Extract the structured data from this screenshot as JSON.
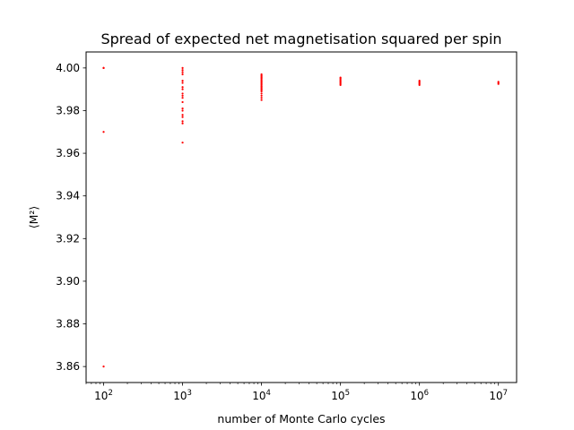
{
  "chart_data": {
    "type": "scatter",
    "title": "Spread of expected net magnetisation squared per spin",
    "xlabel": "number of Monte Carlo cycles",
    "ylabel": "⟨M²⟩",
    "xscale": "log",
    "xlim": [
      60,
      17000000
    ],
    "ylim": [
      3.8525,
      4.0075
    ],
    "x_ticks": [
      {
        "value": 100,
        "base": "10",
        "exp": "2"
      },
      {
        "value": 1000,
        "base": "10",
        "exp": "3"
      },
      {
        "value": 10000,
        "base": "10",
        "exp": "4"
      },
      {
        "value": 100000,
        "base": "10",
        "exp": "5"
      },
      {
        "value": 1000000,
        "base": "10",
        "exp": "6"
      },
      {
        "value": 10000000,
        "base": "10",
        "exp": "7"
      }
    ],
    "y_ticks": [
      {
        "value": 3.86,
        "label": "3.86"
      },
      {
        "value": 3.88,
        "label": "3.88"
      },
      {
        "value": 3.9,
        "label": "3.90"
      },
      {
        "value": 3.92,
        "label": "3.92"
      },
      {
        "value": 3.94,
        "label": "3.94"
      },
      {
        "value": 3.96,
        "label": "3.96"
      },
      {
        "value": 3.98,
        "label": "3.98"
      },
      {
        "value": 4.0,
        "label": "4.00"
      }
    ],
    "grid": false,
    "marker_color": "#ff0000",
    "series": [
      {
        "points": [
          {
            "x": 100,
            "y": 4.0
          },
          {
            "x": 100,
            "y": 4.0
          },
          {
            "x": 100,
            "y": 4.0
          },
          {
            "x": 100,
            "y": 3.97
          },
          {
            "x": 100,
            "y": 3.86
          },
          {
            "x": 1000,
            "y": 4.0
          },
          {
            "x": 1000,
            "y": 3.999
          },
          {
            "x": 1000,
            "y": 3.998
          },
          {
            "x": 1000,
            "y": 3.997
          },
          {
            "x": 1000,
            "y": 3.994
          },
          {
            "x": 1000,
            "y": 3.993
          },
          {
            "x": 1000,
            "y": 3.991
          },
          {
            "x": 1000,
            "y": 3.99
          },
          {
            "x": 1000,
            "y": 3.988
          },
          {
            "x": 1000,
            "y": 3.987
          },
          {
            "x": 1000,
            "y": 3.986
          },
          {
            "x": 1000,
            "y": 3.984
          },
          {
            "x": 1000,
            "y": 3.981
          },
          {
            "x": 1000,
            "y": 3.98
          },
          {
            "x": 1000,
            "y": 3.978
          },
          {
            "x": 1000,
            "y": 3.977
          },
          {
            "x": 1000,
            "y": 3.975
          },
          {
            "x": 1000,
            "y": 3.974
          },
          {
            "x": 1000,
            "y": 3.965
          },
          {
            "x": 10000,
            "y": 3.997
          },
          {
            "x": 10000,
            "y": 3.9965
          },
          {
            "x": 10000,
            "y": 3.996
          },
          {
            "x": 10000,
            "y": 3.9955
          },
          {
            "x": 10000,
            "y": 3.995
          },
          {
            "x": 10000,
            "y": 3.9945
          },
          {
            "x": 10000,
            "y": 3.994
          },
          {
            "x": 10000,
            "y": 3.9935
          },
          {
            "x": 10000,
            "y": 3.993
          },
          {
            "x": 10000,
            "y": 3.9925
          },
          {
            "x": 10000,
            "y": 3.992
          },
          {
            "x": 10000,
            "y": 3.9915
          },
          {
            "x": 10000,
            "y": 3.991
          },
          {
            "x": 10000,
            "y": 3.9905
          },
          {
            "x": 10000,
            "y": 3.99
          },
          {
            "x": 10000,
            "y": 3.9895
          },
          {
            "x": 10000,
            "y": 3.989
          },
          {
            "x": 10000,
            "y": 3.988
          },
          {
            "x": 10000,
            "y": 3.987
          },
          {
            "x": 10000,
            "y": 3.986
          },
          {
            "x": 10000,
            "y": 3.985
          },
          {
            "x": 100000,
            "y": 3.9955
          },
          {
            "x": 100000,
            "y": 3.995
          },
          {
            "x": 100000,
            "y": 3.9945
          },
          {
            "x": 100000,
            "y": 3.994
          },
          {
            "x": 100000,
            "y": 3.9935
          },
          {
            "x": 100000,
            "y": 3.993
          },
          {
            "x": 100000,
            "y": 3.9925
          },
          {
            "x": 100000,
            "y": 3.992
          },
          {
            "x": 1000000,
            "y": 3.994
          },
          {
            "x": 1000000,
            "y": 3.9935
          },
          {
            "x": 1000000,
            "y": 3.993
          },
          {
            "x": 1000000,
            "y": 3.9925
          },
          {
            "x": 1000000,
            "y": 3.992
          },
          {
            "x": 10000000,
            "y": 3.9935
          },
          {
            "x": 10000000,
            "y": 3.993
          },
          {
            "x": 10000000,
            "y": 3.9925
          }
        ]
      }
    ]
  }
}
